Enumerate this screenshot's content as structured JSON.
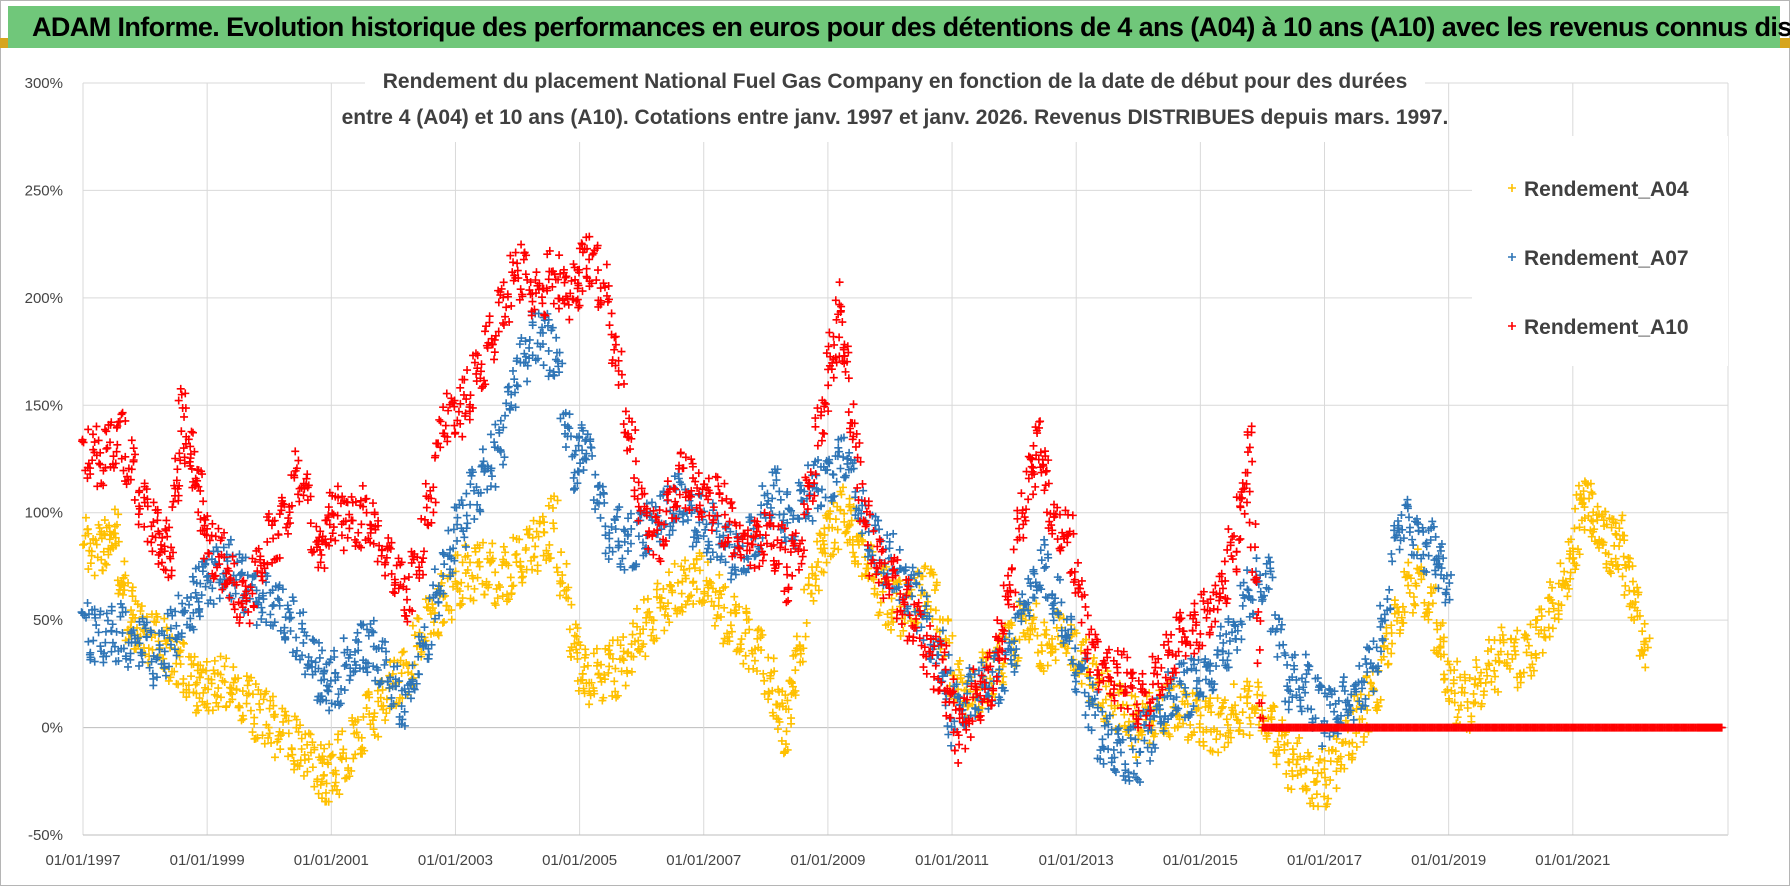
{
  "header": {
    "title": "ADAM Informe. Evolution historique des performances en euros pour des détentions de 4 ans (A04) à 10 ans (A10) avec les revenus connus distribués"
  },
  "chart_data": {
    "type": "scatter",
    "title_line1": "Rendement du placement National Fuel Gas Company en fonction de la date de début pour des durées",
    "title_line2": "entre 4 (A04) et 10 ans (A10).  Cotations entre janv. 1997 et janv. 2026.  Revenus DISTRIBUES depuis mars. 1997.",
    "xlabel": "",
    "ylabel": "",
    "xlim": [
      1997.0,
      2023.5
    ],
    "ylim": [
      -50,
      300
    ],
    "y_ticks": [
      -50,
      0,
      50,
      100,
      150,
      200,
      250,
      300
    ],
    "y_tick_labels": [
      "-50%",
      "0%",
      "50%",
      "100%",
      "150%",
      "200%",
      "250%",
      "300%"
    ],
    "x_ticks": [
      1997,
      1999,
      2001,
      2003,
      2005,
      2007,
      2009,
      2011,
      2013,
      2015,
      2017,
      2019,
      2021
    ],
    "x_tick_labels": [
      "01/01/1997",
      "01/01/1999",
      "01/01/2001",
      "01/01/2003",
      "01/01/2005",
      "01/01/2007",
      "01/01/2009",
      "01/01/2011",
      "01/01/2013",
      "01/01/2015",
      "01/01/2017",
      "01/01/2019",
      "01/01/2021"
    ],
    "legend_position": "right",
    "marker": "+",
    "series": [
      {
        "name": "Rendement_A04",
        "color": "#ffc000",
        "points": [
          [
            1997.0,
            85
          ],
          [
            1997.3,
            80
          ],
          [
            1997.5,
            95
          ],
          [
            1997.7,
            55
          ],
          [
            1997.9,
            45
          ],
          [
            1998.2,
            42
          ],
          [
            1998.5,
            30
          ],
          [
            1998.8,
            22
          ],
          [
            1999.0,
            18
          ],
          [
            1999.3,
            20
          ],
          [
            1999.6,
            12
          ],
          [
            1999.9,
            5
          ],
          [
            2000.2,
            -2
          ],
          [
            2000.5,
            -10
          ],
          [
            2000.8,
            -20
          ],
          [
            2001.0,
            -22
          ],
          [
            2001.3,
            -12
          ],
          [
            2001.6,
            5
          ],
          [
            2001.9,
            15
          ],
          [
            2002.2,
            25
          ],
          [
            2002.5,
            45
          ],
          [
            2002.8,
            60
          ],
          [
            2003.1,
            70
          ],
          [
            2003.4,
            75
          ],
          [
            2003.7,
            70
          ],
          [
            2004.0,
            75
          ],
          [
            2004.3,
            85
          ],
          [
            2004.6,
            95
          ],
          [
            2004.9,
            40
          ],
          [
            2005.1,
            20
          ],
          [
            2005.4,
            25
          ],
          [
            2005.7,
            30
          ],
          [
            2006.0,
            45
          ],
          [
            2006.3,
            55
          ],
          [
            2006.6,
            65
          ],
          [
            2006.9,
            70
          ],
          [
            2007.2,
            60
          ],
          [
            2007.5,
            45
          ],
          [
            2007.8,
            40
          ],
          [
            2008.1,
            20
          ],
          [
            2008.3,
            -2
          ],
          [
            2008.5,
            30
          ],
          [
            2008.8,
            75
          ],
          [
            2009.0,
            90
          ],
          [
            2009.3,
            100
          ],
          [
            2009.5,
            85
          ],
          [
            2009.8,
            65
          ],
          [
            2010.1,
            55
          ],
          [
            2010.4,
            60
          ],
          [
            2010.7,
            65
          ],
          [
            2011.0,
            25
          ],
          [
            2011.3,
            15
          ],
          [
            2011.6,
            25
          ],
          [
            2011.9,
            35
          ],
          [
            2012.2,
            50
          ],
          [
            2012.5,
            35
          ],
          [
            2012.8,
            45
          ],
          [
            2013.1,
            30
          ],
          [
            2013.4,
            15
          ],
          [
            2013.7,
            10
          ],
          [
            2014.0,
            0
          ],
          [
            2014.3,
            5
          ],
          [
            2014.6,
            10
          ],
          [
            2014.9,
            5
          ],
          [
            2015.2,
            0
          ],
          [
            2015.5,
            5
          ],
          [
            2015.8,
            10
          ],
          [
            2016.1,
            5
          ],
          [
            2016.4,
            -15
          ],
          [
            2016.7,
            -20
          ],
          [
            2017.0,
            -25
          ],
          [
            2017.3,
            -10
          ],
          [
            2017.6,
            5
          ],
          [
            2017.9,
            25
          ],
          [
            2018.2,
            55
          ],
          [
            2018.5,
            70
          ],
          [
            2018.8,
            50
          ],
          [
            2019.0,
            20
          ],
          [
            2019.3,
            10
          ],
          [
            2019.6,
            25
          ],
          [
            2019.9,
            35
          ],
          [
            2020.2,
            30
          ],
          [
            2020.5,
            45
          ],
          [
            2020.8,
            60
          ],
          [
            2021.0,
            80
          ],
          [
            2021.2,
            110
          ],
          [
            2021.4,
            90
          ],
          [
            2021.6,
            85
          ],
          [
            2021.8,
            85
          ],
          [
            2022.0,
            55
          ],
          [
            2022.2,
            35
          ]
        ]
      },
      {
        "name": "Rendement_A07",
        "color": "#2e75b6",
        "points": [
          [
            1997.0,
            45
          ],
          [
            1997.3,
            42
          ],
          [
            1997.6,
            44
          ],
          [
            1997.9,
            40
          ],
          [
            1998.2,
            30
          ],
          [
            1998.5,
            45
          ],
          [
            1998.8,
            60
          ],
          [
            1999.0,
            70
          ],
          [
            1999.3,
            75
          ],
          [
            1999.6,
            65
          ],
          [
            1999.9,
            60
          ],
          [
            2000.2,
            55
          ],
          [
            2000.5,
            40
          ],
          [
            2000.8,
            25
          ],
          [
            2001.0,
            20
          ],
          [
            2001.3,
            30
          ],
          [
            2001.6,
            40
          ],
          [
            2001.9,
            25
          ],
          [
            2002.2,
            10
          ],
          [
            2002.5,
            40
          ],
          [
            2002.8,
            75
          ],
          [
            2003.1,
            95
          ],
          [
            2003.4,
            115
          ],
          [
            2003.7,
            130
          ],
          [
            2004.0,
            165
          ],
          [
            2004.3,
            185
          ],
          [
            2004.6,
            175
          ],
          [
            2004.9,
            120
          ],
          [
            2005.1,
            135
          ],
          [
            2005.4,
            95
          ],
          [
            2005.7,
            85
          ],
          [
            2006.0,
            90
          ],
          [
            2006.3,
            100
          ],
          [
            2006.6,
            105
          ],
          [
            2006.9,
            95
          ],
          [
            2007.2,
            90
          ],
          [
            2007.5,
            80
          ],
          [
            2007.8,
            85
          ],
          [
            2008.1,
            110
          ],
          [
            2008.4,
            95
          ],
          [
            2008.7,
            110
          ],
          [
            2009.0,
            115
          ],
          [
            2009.3,
            130
          ],
          [
            2009.6,
            90
          ],
          [
            2009.9,
            80
          ],
          [
            2010.2,
            70
          ],
          [
            2010.5,
            55
          ],
          [
            2010.8,
            35
          ],
          [
            2011.0,
            5
          ],
          [
            2011.3,
            15
          ],
          [
            2011.6,
            20
          ],
          [
            2011.9,
            30
          ],
          [
            2012.2,
            60
          ],
          [
            2012.5,
            75
          ],
          [
            2012.8,
            45
          ],
          [
            2013.1,
            25
          ],
          [
            2013.4,
            -5
          ],
          [
            2013.7,
            -10
          ],
          [
            2014.0,
            -12
          ],
          [
            2014.3,
            5
          ],
          [
            2014.6,
            15
          ],
          [
            2014.9,
            20
          ],
          [
            2015.2,
            30
          ],
          [
            2015.5,
            40
          ],
          [
            2015.8,
            65
          ],
          [
            2016.1,
            70
          ],
          [
            2016.4,
            20
          ],
          [
            2016.7,
            20
          ],
          [
            2017.0,
            5
          ],
          [
            2017.3,
            10
          ],
          [
            2017.6,
            20
          ],
          [
            2017.9,
            35
          ],
          [
            2018.2,
            100
          ],
          [
            2018.5,
            90
          ],
          [
            2018.8,
            80
          ],
          [
            2019.0,
            65
          ]
        ]
      },
      {
        "name": "Rendement_A10",
        "color": "#ff0000",
        "points": [
          [
            1997.0,
            130
          ],
          [
            1997.3,
            125
          ],
          [
            1997.6,
            135
          ],
          [
            1997.9,
            110
          ],
          [
            1998.2,
            90
          ],
          [
            1998.4,
            80
          ],
          [
            1998.6,
            145
          ],
          [
            1998.8,
            120
          ],
          [
            1999.0,
            85
          ],
          [
            1999.3,
            75
          ],
          [
            1999.6,
            55
          ],
          [
            1999.9,
            80
          ],
          [
            2000.2,
            95
          ],
          [
            2000.5,
            120
          ],
          [
            2000.8,
            80
          ],
          [
            2001.0,
            100
          ],
          [
            2001.3,
            95
          ],
          [
            2001.6,
            100
          ],
          [
            2001.9,
            80
          ],
          [
            2002.2,
            60
          ],
          [
            2002.5,
            90
          ],
          [
            2002.8,
            140
          ],
          [
            2003.1,
            150
          ],
          [
            2003.4,
            165
          ],
          [
            2003.7,
            190
          ],
          [
            2004.0,
            215
          ],
          [
            2004.3,
            200
          ],
          [
            2004.6,
            210
          ],
          [
            2004.9,
            200
          ],
          [
            2005.1,
            220
          ],
          [
            2005.4,
            205
          ],
          [
            2005.7,
            150
          ],
          [
            2006.0,
            100
          ],
          [
            2006.3,
            90
          ],
          [
            2006.6,
            115
          ],
          [
            2006.9,
            110
          ],
          [
            2007.2,
            105
          ],
          [
            2007.5,
            90
          ],
          [
            2007.8,
            85
          ],
          [
            2008.1,
            90
          ],
          [
            2008.4,
            70
          ],
          [
            2008.7,
            110
          ],
          [
            2009.0,
            160
          ],
          [
            2009.2,
            195
          ],
          [
            2009.4,
            140
          ],
          [
            2009.7,
            80
          ],
          [
            2010.0,
            70
          ],
          [
            2010.3,
            55
          ],
          [
            2010.6,
            35
          ],
          [
            2010.9,
            25
          ],
          [
            2011.1,
            -5
          ],
          [
            2011.4,
            15
          ],
          [
            2011.7,
            25
          ],
          [
            2011.9,
            60
          ],
          [
            2012.2,
            110
          ],
          [
            2012.4,
            135
          ],
          [
            2012.6,
            100
          ],
          [
            2012.9,
            85
          ],
          [
            2013.2,
            40
          ],
          [
            2013.5,
            25
          ],
          [
            2013.8,
            20
          ],
          [
            2014.1,
            10
          ],
          [
            2014.4,
            30
          ],
          [
            2014.7,
            40
          ],
          [
            2015.0,
            50
          ],
          [
            2015.3,
            60
          ],
          [
            2015.6,
            90
          ],
          [
            2015.8,
            130
          ],
          [
            2016.0,
            0
          ],
          [
            2016.5,
            0
          ],
          [
            2017.0,
            0
          ],
          [
            2017.5,
            0
          ],
          [
            2018.0,
            0
          ],
          [
            2018.5,
            0
          ],
          [
            2019.0,
            0
          ],
          [
            2019.5,
            0
          ],
          [
            2020.0,
            0
          ],
          [
            2020.5,
            0
          ],
          [
            2021.0,
            0
          ],
          [
            2021.5,
            0
          ],
          [
            2022.0,
            0
          ],
          [
            2022.5,
            0
          ],
          [
            2023.0,
            0
          ],
          [
            2023.4,
            0
          ]
        ]
      }
    ]
  }
}
